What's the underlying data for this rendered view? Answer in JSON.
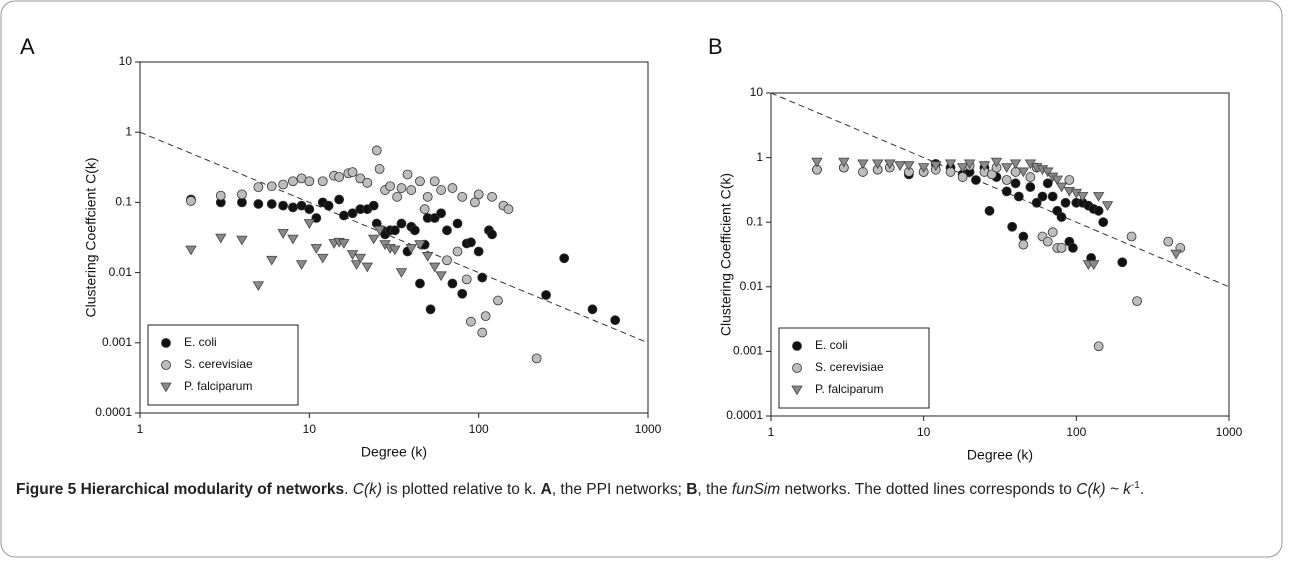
{
  "chart_data": [
    {
      "type": "scatter",
      "label": "A",
      "xlabel": "Degree (k)",
      "ylabel": "Clustering Coeffcient C(k)",
      "xscale": "log",
      "yscale": "log",
      "xlim": [
        1,
        1000
      ],
      "ylim": [
        0.0001,
        10
      ],
      "xticks": [
        1,
        10,
        100,
        1000
      ],
      "yticks": [
        0.0001,
        0.001,
        0.01,
        0.1,
        1,
        10
      ],
      "legend": "lower left",
      "reference_line": {
        "x": [
          1,
          1000
        ],
        "y": [
          1,
          0.001
        ],
        "style": "dashed"
      },
      "series": [
        {
          "name": "E. coli",
          "color": "#111111",
          "marker": "circle",
          "x": [
            2,
            3,
            4,
            5,
            6,
            7,
            8,
            9,
            10,
            11,
            12,
            13,
            15,
            16,
            18,
            20,
            22,
            24,
            25,
            27,
            28,
            30,
            32,
            35,
            38,
            40,
            42,
            45,
            48,
            50,
            52,
            55,
            60,
            65,
            70,
            75,
            80,
            85,
            90,
            100,
            105,
            115,
            120,
            250,
            320,
            470,
            640
          ],
          "values": [
            0.11,
            0.1,
            0.1,
            0.095,
            0.095,
            0.09,
            0.085,
            0.09,
            0.08,
            0.06,
            0.1,
            0.09,
            0.11,
            0.065,
            0.07,
            0.08,
            0.08,
            0.09,
            0.05,
            0.04,
            0.035,
            0.04,
            0.04,
            0.05,
            0.02,
            0.045,
            0.04,
            0.007,
            0.025,
            0.06,
            0.003,
            0.06,
            0.07,
            0.04,
            0.007,
            0.05,
            0.005,
            0.026,
            0.027,
            0.02,
            0.0085,
            0.04,
            0.035,
            0.0048,
            0.016,
            0.003,
            0.0021
          ]
        },
        {
          "name": "S. cerevisiae",
          "color": "#bdbdbd",
          "marker": "circle",
          "x": [
            2,
            3,
            4,
            5,
            6,
            7,
            8,
            9,
            10,
            12,
            14,
            15,
            17,
            18,
            20,
            22,
            25,
            26,
            28,
            30,
            33,
            35,
            38,
            40,
            45,
            48,
            50,
            55,
            60,
            65,
            70,
            75,
            80,
            85,
            90,
            95,
            100,
            105,
            110,
            120,
            130,
            140,
            150,
            220
          ],
          "values": [
            0.105,
            0.125,
            0.13,
            0.165,
            0.17,
            0.18,
            0.2,
            0.22,
            0.2,
            0.2,
            0.24,
            0.23,
            0.26,
            0.27,
            0.22,
            0.19,
            0.55,
            0.3,
            0.15,
            0.17,
            0.12,
            0.16,
            0.25,
            0.15,
            0.2,
            0.08,
            0.12,
            0.2,
            0.15,
            0.015,
            0.16,
            0.02,
            0.12,
            0.008,
            0.002,
            0.1,
            0.13,
            0.0014,
            0.0024,
            0.12,
            0.004,
            0.09,
            0.08,
            0.0006
          ]
        },
        {
          "name": "P. falciparum",
          "color": "#8a8a8a",
          "marker": "triangle-down",
          "x": [
            2,
            3,
            4,
            5,
            6,
            7,
            8,
            9,
            10,
            11,
            12,
            14,
            15,
            16,
            18,
            19,
            20,
            22,
            24,
            26,
            28,
            30,
            32,
            35,
            40,
            45,
            50,
            55,
            60
          ],
          "values": [
            0.021,
            0.031,
            0.029,
            0.0065,
            0.015,
            0.036,
            0.03,
            0.013,
            0.05,
            0.022,
            0.016,
            0.026,
            0.027,
            0.026,
            0.018,
            0.013,
            0.016,
            0.012,
            0.03,
            0.04,
            0.025,
            0.022,
            0.021,
            0.01,
            0.022,
            0.025,
            0.017,
            0.012,
            0.009
          ]
        }
      ]
    },
    {
      "type": "scatter",
      "label": "B",
      "xlabel": "Degree (k)",
      "ylabel": "Clustering Coefficient C(k)",
      "xscale": "log",
      "yscale": "log",
      "xlim": [
        1,
        1000
      ],
      "ylim": [
        0.0001,
        10
      ],
      "xticks": [
        1,
        10,
        100,
        1000
      ],
      "yticks": [
        0.0001,
        0.001,
        0.01,
        0.1,
        1,
        10
      ],
      "legend": "lower left",
      "reference_line": {
        "x": [
          1,
          1000
        ],
        "y": [
          10,
          0.01
        ],
        "style": "dashed"
      },
      "series": [
        {
          "name": "E. coli",
          "color": "#111111",
          "marker": "circle",
          "x": [
            2,
            3,
            5,
            8,
            10,
            12,
            15,
            18,
            20,
            22,
            25,
            27,
            30,
            35,
            38,
            40,
            42,
            45,
            50,
            55,
            60,
            65,
            70,
            75,
            80,
            85,
            90,
            95,
            100,
            110,
            120,
            125,
            130,
            140,
            150,
            200
          ],
          "values": [
            0.65,
            0.7,
            0.65,
            0.55,
            0.6,
            0.8,
            0.7,
            0.55,
            0.6,
            0.45,
            0.7,
            0.15,
            0.5,
            0.3,
            0.085,
            0.4,
            0.25,
            0.06,
            0.35,
            0.2,
            0.25,
            0.4,
            0.25,
            0.15,
            0.12,
            0.2,
            0.05,
            0.04,
            0.2,
            0.2,
            0.18,
            0.028,
            0.16,
            0.15,
            0.1,
            0.024
          ]
        },
        {
          "name": "S. cerevisiae",
          "color": "#bdbdbd",
          "marker": "circle",
          "x": [
            2,
            3,
            4,
            5,
            6,
            8,
            10,
            12,
            15,
            18,
            20,
            25,
            28,
            30,
            35,
            40,
            45,
            50,
            55,
            60,
            65,
            70,
            75,
            80,
            90,
            140,
            230,
            250,
            400,
            480
          ],
          "values": [
            0.65,
            0.7,
            0.6,
            0.65,
            0.7,
            0.6,
            0.6,
            0.65,
            0.6,
            0.5,
            0.75,
            0.6,
            0.55,
            0.7,
            0.45,
            0.6,
            0.045,
            0.5,
            0.7,
            0.06,
            0.05,
            0.07,
            0.04,
            0.04,
            0.45,
            0.0012,
            0.06,
            0.006,
            0.05,
            0.04
          ]
        },
        {
          "name": "P. falciparum",
          "color": "#8a8a8a",
          "marker": "triangle-down",
          "x": [
            2,
            3,
            4,
            5,
            6,
            7,
            8,
            10,
            12,
            15,
            18,
            20,
            25,
            30,
            35,
            40,
            45,
            50,
            55,
            60,
            65,
            70,
            75,
            80,
            90,
            100,
            110,
            120,
            130,
            140,
            160,
            450
          ],
          "values": [
            0.85,
            0.85,
            0.8,
            0.8,
            0.8,
            0.75,
            0.75,
            0.7,
            0.75,
            0.8,
            0.7,
            0.8,
            0.75,
            0.85,
            0.7,
            0.8,
            0.6,
            0.8,
            0.7,
            0.65,
            0.6,
            0.5,
            0.45,
            0.35,
            0.3,
            0.28,
            0.25,
            0.022,
            0.022,
            0.25,
            0.18,
            0.032
          ]
        }
      ]
    }
  ],
  "caption": [
    {
      "text": "Figure 5 Hierarchical modularity of networks",
      "style": "bold"
    },
    {
      "text": ". ",
      "style": "normal"
    },
    {
      "text": "C(k)",
      "style": "italic"
    },
    {
      "text": " is plotted relative to k. ",
      "style": "normal"
    },
    {
      "text": "A",
      "style": "bold"
    },
    {
      "text": ", the PPI networks; ",
      "style": "normal"
    },
    {
      "text": "B",
      "style": "bold"
    },
    {
      "text": ", the ",
      "style": "normal"
    },
    {
      "text": "funSim",
      "style": "italic"
    },
    {
      "text": " networks. The dotted lines corresponds to ",
      "style": "normal"
    },
    {
      "text": "C(k) ~ k",
      "style": "italic"
    },
    {
      "text": "-1",
      "style": "sup"
    },
    {
      "text": ".",
      "style": "normal"
    }
  ]
}
